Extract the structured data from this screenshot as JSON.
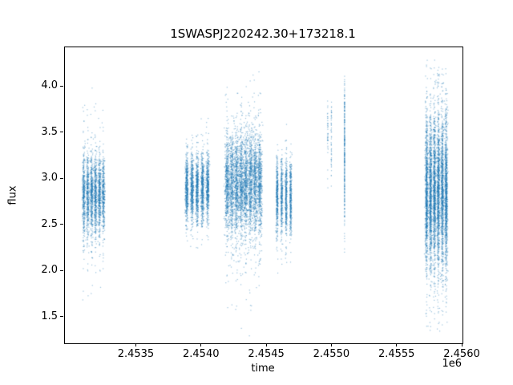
{
  "figure": {
    "title": "1SWASPJ220242.30+173218.1",
    "xlabel": "time",
    "ylabel": "flux",
    "offset_text": "1e6"
  },
  "chart_data": {
    "type": "scatter",
    "title": "1SWASPJ220242.30+173218.1",
    "xlabel": "time",
    "ylabel": "flux",
    "x_offset_factor": "1e6",
    "grid": false,
    "legend": "none",
    "xlim": [
      2452950,
      2456000
    ],
    "ylim": [
      1.22,
      4.43
    ],
    "x_ticks": [
      {
        "value": 2453500,
        "label": "2.4535"
      },
      {
        "value": 2454000,
        "label": "2.4540"
      },
      {
        "value": 2454500,
        "label": "2.4545"
      },
      {
        "value": 2455000,
        "label": "2.4550"
      },
      {
        "value": 2455500,
        "label": "2.4555"
      },
      {
        "value": 2456000,
        "label": "2.4560"
      }
    ],
    "y_ticks": [
      {
        "value": 1.5,
        "label": "1.5"
      },
      {
        "value": 2.0,
        "label": "2.0"
      },
      {
        "value": 2.5,
        "label": "2.5"
      },
      {
        "value": 3.0,
        "label": "3.0"
      },
      {
        "value": 3.5,
        "label": "3.5"
      },
      {
        "value": 4.0,
        "label": "4.0"
      }
    ],
    "marker_color": "#1f77b4",
    "marker_alpha": 0.45,
    "marker_size_px": 1.2,
    "seed": 7,
    "clusters": [
      {
        "x_center": 2453170,
        "x_halfwidth": 75,
        "strips": 6,
        "n": 2500,
        "flux_mean": 2.82,
        "flux_std": 0.2,
        "outlier_frac": 0.12,
        "outlier_std": 0.45,
        "flux_min": 1.6,
        "flux_max": 4.17
      },
      {
        "x_center": 2453965,
        "x_halfwidth": 80,
        "strips": 5,
        "n": 2400,
        "flux_mean": 2.9,
        "flux_std": 0.18,
        "outlier_frac": 0.06,
        "outlier_std": 0.32,
        "flux_min": 2.25,
        "flux_max": 3.7
      },
      {
        "x_center": 2454320,
        "x_halfwidth": 125,
        "strips": 8,
        "n": 4500,
        "flux_mean": 2.95,
        "flux_std": 0.27,
        "outlier_frac": 0.09,
        "outlier_std": 0.62,
        "flux_min": 1.3,
        "flux_max": 4.2
      },
      {
        "x_center": 2454630,
        "x_halfwidth": 52,
        "strips": 4,
        "n": 1500,
        "flux_mean": 2.8,
        "flux_std": 0.2,
        "outlier_frac": 0.06,
        "outlier_std": 0.4,
        "flux_min": 1.95,
        "flux_max": 3.65
      },
      {
        "x_center": 2454980,
        "x_halfwidth": 14,
        "strips": 2,
        "n": 90,
        "flux_mean": 3.45,
        "flux_std": 0.24,
        "outlier_frac": 0.05,
        "outlier_std": 0.35,
        "flux_min": 2.85,
        "flux_max": 3.95
      },
      {
        "x_center": 2455095,
        "x_halfwidth": 6,
        "strips": 1,
        "n": 300,
        "flux_mean": 3.3,
        "flux_std": 0.45,
        "outlier_frac": 0.05,
        "outlier_std": 0.6,
        "flux_min": 2.18,
        "flux_max": 4.13
      },
      {
        "x_center": 2455800,
        "x_halfwidth": 75,
        "strips": 6,
        "n": 5500,
        "flux_mean": 2.85,
        "flux_std": 0.38,
        "outlier_frac": 0.15,
        "outlier_std": 0.72,
        "flux_min": 1.33,
        "flux_max": 4.32
      }
    ]
  }
}
